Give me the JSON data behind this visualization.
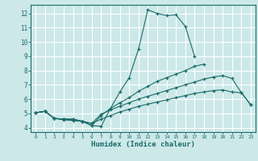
{
  "xlabel": "Humidex (Indice chaleur)",
  "bg_color": "#cce8e8",
  "grid_color": "#ffffff",
  "line_color": "#1a6b6b",
  "xlim": [
    -0.5,
    23.5
  ],
  "ylim": [
    3.7,
    12.6
  ],
  "xticks": [
    0,
    1,
    2,
    3,
    4,
    5,
    6,
    7,
    8,
    9,
    10,
    11,
    12,
    13,
    14,
    15,
    16,
    17,
    18,
    19,
    20,
    21,
    22,
    23
  ],
  "yticks": [
    4,
    5,
    6,
    7,
    8,
    9,
    10,
    11,
    12
  ],
  "lines": [
    {
      "x": [
        0,
        1,
        2,
        3,
        4,
        5,
        6,
        7,
        8,
        9,
        10,
        11,
        12,
        13,
        14,
        15,
        16,
        17,
        18,
        19,
        20,
        21,
        22
      ],
      "y": [
        5.05,
        5.15,
        4.65,
        4.6,
        4.6,
        4.45,
        4.15,
        4.1,
        5.35,
        6.5,
        7.5,
        9.5,
        12.25,
        12.0,
        11.85,
        11.9,
        11.1,
        9.0,
        null,
        null,
        null,
        null,
        null
      ]
    },
    {
      "x": [
        0,
        1,
        2,
        3,
        4,
        5,
        6,
        7,
        8,
        9,
        10,
        11,
        12,
        13,
        14,
        15,
        16,
        17,
        18,
        19
      ],
      "y": [
        5.05,
        5.15,
        4.65,
        4.6,
        4.6,
        4.45,
        4.15,
        4.85,
        5.35,
        5.75,
        6.1,
        6.55,
        6.9,
        7.25,
        7.5,
        7.75,
        8.0,
        8.3,
        8.45,
        null
      ]
    },
    {
      "x": [
        0,
        1,
        2,
        3,
        4,
        5,
        6,
        7,
        8,
        9,
        10,
        11,
        12,
        13,
        14,
        15,
        16,
        17,
        18,
        19,
        20,
        21,
        22,
        23
      ],
      "y": [
        5.05,
        5.15,
        4.65,
        4.6,
        4.55,
        4.45,
        4.3,
        4.95,
        5.25,
        5.5,
        5.75,
        6.0,
        6.2,
        6.4,
        6.6,
        6.8,
        7.0,
        7.2,
        7.4,
        7.55,
        7.65,
        7.45,
        6.45,
        5.6
      ]
    },
    {
      "x": [
        0,
        1,
        2,
        3,
        4,
        5,
        6,
        7,
        8,
        9,
        10,
        11,
        12,
        13,
        14,
        15,
        16,
        17,
        18,
        19,
        20,
        21,
        22,
        23
      ],
      "y": [
        5.05,
        5.15,
        4.65,
        4.55,
        4.5,
        4.45,
        4.3,
        4.6,
        4.85,
        5.1,
        5.3,
        5.5,
        5.65,
        5.8,
        5.95,
        6.1,
        6.25,
        6.4,
        6.5,
        6.6,
        6.65,
        6.5,
        6.45,
        5.6
      ]
    }
  ]
}
